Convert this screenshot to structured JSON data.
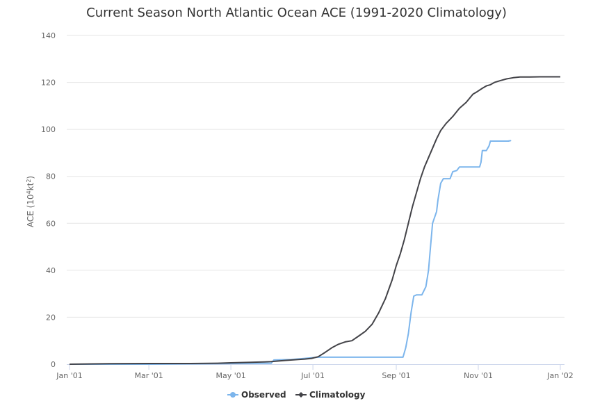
{
  "chart_data": {
    "type": "line",
    "title": "Current Season North Atlantic Ocean ACE (1991-2020 Climatology)",
    "ylabel_base": "ACE (10",
    "ylabel_sup1": "4",
    "ylabel_mid": "kt",
    "ylabel_sup2": "2",
    "ylabel_end": ")",
    "ylim": [
      0,
      140
    ],
    "yticks": [
      0,
      20,
      40,
      60,
      80,
      100,
      120,
      140
    ],
    "xlim": [
      0,
      365
    ],
    "xticks": [
      {
        "label": "Jan '01",
        "day": 0
      },
      {
        "label": "Mar '01",
        "day": 59
      },
      {
        "label": "May '01",
        "day": 120
      },
      {
        "label": "Jul '01",
        "day": 181
      },
      {
        "label": "Sep '01",
        "day": 243
      },
      {
        "label": "Nov '01",
        "day": 304
      },
      {
        "label": "Jan '02",
        "day": 365
      }
    ],
    "grid": true,
    "legend_position": "bottom-center",
    "series": [
      {
        "name": "Observed",
        "color": "#7cb5ec",
        "points": [
          [
            0,
            0
          ],
          [
            60,
            0
          ],
          [
            120,
            0.3
          ],
          [
            150,
            0.4
          ],
          [
            152,
            1.8
          ],
          [
            165,
            2
          ],
          [
            175,
            2.5
          ],
          [
            185,
            3
          ],
          [
            240,
            3
          ],
          [
            248,
            3
          ],
          [
            250,
            7
          ],
          [
            252,
            13
          ],
          [
            254,
            22
          ],
          [
            256,
            29
          ],
          [
            258,
            29.5
          ],
          [
            262,
            29.5
          ],
          [
            265,
            33
          ],
          [
            267,
            40
          ],
          [
            268,
            47
          ],
          [
            270,
            60
          ],
          [
            273,
            65
          ],
          [
            274,
            70
          ],
          [
            276,
            77
          ],
          [
            278,
            79
          ],
          [
            283,
            79
          ],
          [
            285,
            82
          ],
          [
            288,
            82.5
          ],
          [
            290,
            84
          ],
          [
            298,
            84
          ],
          [
            305,
            84
          ],
          [
            306,
            86
          ],
          [
            307,
            91
          ],
          [
            310,
            91
          ],
          [
            312,
            93
          ],
          [
            313,
            95
          ],
          [
            326,
            95
          ],
          [
            328,
            95.2
          ],
          [
            326,
            95
          ],
          [
            327,
            95
          ]
        ]
      },
      {
        "name": "Climatology",
        "color": "#434348",
        "points": [
          [
            0,
            0
          ],
          [
            30,
            0.2
          ],
          [
            60,
            0.3
          ],
          [
            90,
            0.3
          ],
          [
            110,
            0.4
          ],
          [
            120,
            0.6
          ],
          [
            135,
            0.8
          ],
          [
            150,
            1.1
          ],
          [
            160,
            1.6
          ],
          [
            170,
            2
          ],
          [
            175,
            2.2
          ],
          [
            180,
            2.5
          ],
          [
            185,
            3.2
          ],
          [
            190,
            5
          ],
          [
            195,
            7
          ],
          [
            200,
            8.5
          ],
          [
            205,
            9.5
          ],
          [
            210,
            10
          ],
          [
            215,
            12
          ],
          [
            220,
            14
          ],
          [
            225,
            17
          ],
          [
            230,
            22
          ],
          [
            235,
            28
          ],
          [
            240,
            36
          ],
          [
            243,
            42
          ],
          [
            246,
            47
          ],
          [
            249,
            53
          ],
          [
            252,
            60
          ],
          [
            255,
            67
          ],
          [
            258,
            73
          ],
          [
            261,
            79
          ],
          [
            264,
            84
          ],
          [
            267,
            88
          ],
          [
            270,
            92
          ],
          [
            273,
            96
          ],
          [
            276,
            99.5
          ],
          [
            280,
            102.5
          ],
          [
            285,
            105.5
          ],
          [
            290,
            109
          ],
          [
            295,
            111.5
          ],
          [
            300,
            115
          ],
          [
            303,
            116
          ],
          [
            307,
            117.5
          ],
          [
            310,
            118.5
          ],
          [
            313,
            119
          ],
          [
            316,
            120
          ],
          [
            320,
            120.7
          ],
          [
            325,
            121.5
          ],
          [
            330,
            122
          ],
          [
            335,
            122.3
          ],
          [
            340,
            122.3
          ],
          [
            350,
            122.4
          ],
          [
            360,
            122.4
          ],
          [
            365,
            122.4
          ]
        ]
      }
    ]
  }
}
